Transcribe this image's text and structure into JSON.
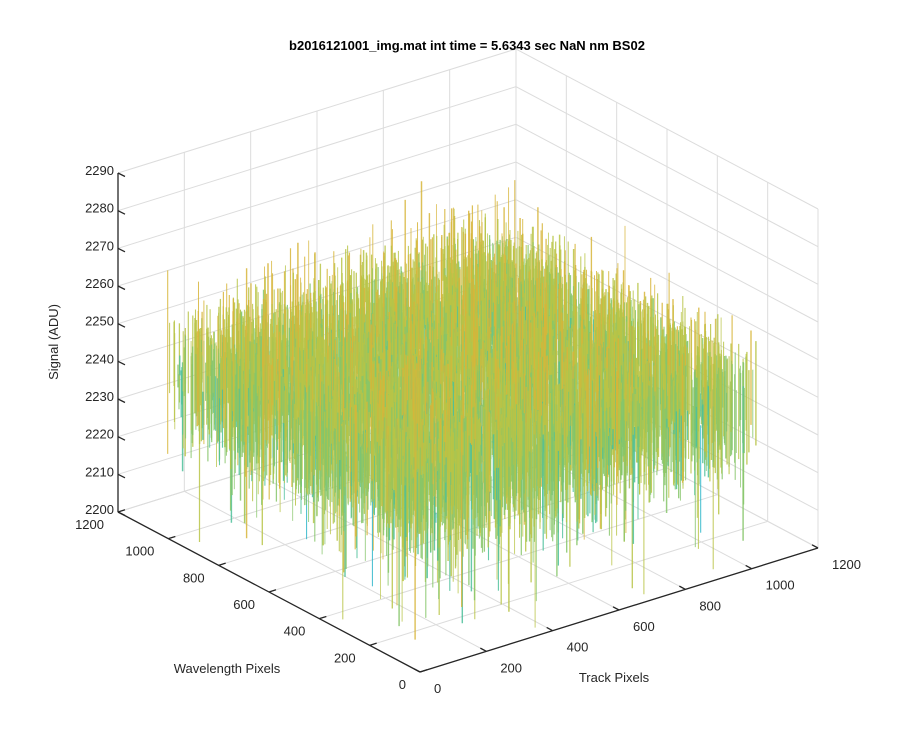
{
  "chart_data": {
    "type": "surface",
    "title": "b2016121001_img.mat int time = 5.6343 sec  NaN nm BS02",
    "xlabel": "Track Pixels",
    "ylabel": "Wavelength Pixels",
    "zlabel": "Signal (ADU)",
    "xlim": [
      0,
      1200
    ],
    "ylim": [
      0,
      1200
    ],
    "zlim": [
      2200,
      2290
    ],
    "x_ticks": [
      "0",
      "200",
      "400",
      "600",
      "800",
      "1000",
      "1200"
    ],
    "y_ticks": [
      "0",
      "200",
      "400",
      "600",
      "800",
      "1000",
      "1200"
    ],
    "z_ticks": [
      "2200",
      "2210",
      "2220",
      "2230",
      "2240",
      "2250",
      "2260",
      "2270",
      "2280",
      "2290"
    ],
    "x_extent": [
      0,
      1024
    ],
    "y_extent": [
      0,
      1024
    ],
    "z_mean": 2247,
    "z_noise_typical": [
      2225,
      2270
    ],
    "z_min_spikes": 2200,
    "z_max_spikes": 2280,
    "grid": true,
    "colormap": [
      "#0f9fd3",
      "#1fb0c6",
      "#4cbf9a",
      "#86c56a",
      "#b9c447",
      "#d7b53a"
    ]
  }
}
